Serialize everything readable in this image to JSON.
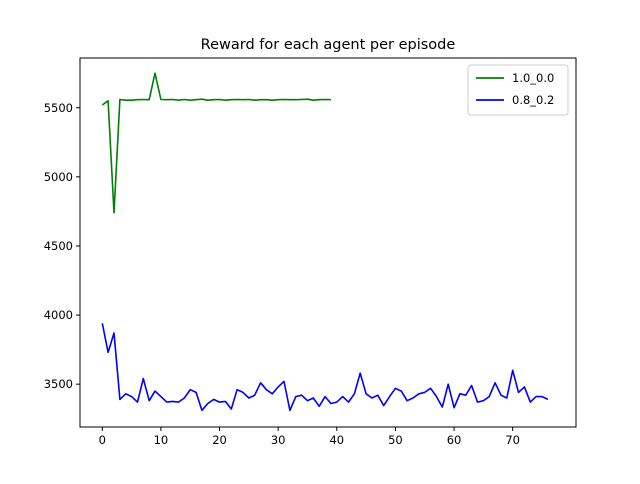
{
  "chart_data": {
    "type": "line",
    "title": "Reward for each agent per episode",
    "xlabel": "",
    "ylabel": "",
    "xlim": [
      -3.8,
      80.8
    ],
    "ylim": [
      3190,
      5860
    ],
    "xticks": [
      0,
      10,
      20,
      30,
      40,
      50,
      60,
      70
    ],
    "yticks": [
      3500,
      4000,
      4500,
      5000,
      5500
    ],
    "grid": false,
    "legend_position": "top-right",
    "series": [
      {
        "name": "1.0_0.0",
        "color": "#008000",
        "x": [
          0,
          1,
          2,
          3,
          4,
          5,
          6,
          7,
          8,
          9,
          10,
          11,
          12,
          13,
          14,
          15,
          16,
          17,
          18,
          19,
          20,
          21,
          22,
          23,
          24,
          25,
          26,
          27,
          28,
          29,
          30,
          31,
          32,
          33,
          34,
          35,
          36,
          37,
          38,
          39
        ],
        "values": [
          5520,
          5550,
          4740,
          5560,
          5555,
          5555,
          5558,
          5560,
          5558,
          5750,
          5560,
          5558,
          5560,
          5555,
          5560,
          5555,
          5558,
          5562,
          5555,
          5558,
          5560,
          5555,
          5558,
          5560,
          5558,
          5560,
          5555,
          5558,
          5558,
          5555,
          5558,
          5560,
          5558,
          5558,
          5560,
          5562,
          5555,
          5558,
          5560,
          5558
        ]
      },
      {
        "name": "0.8_0.2",
        "color": "#0000ff",
        "x": [
          0,
          1,
          2,
          3,
          4,
          5,
          6,
          7,
          8,
          9,
          10,
          11,
          12,
          13,
          14,
          15,
          16,
          17,
          18,
          19,
          20,
          21,
          22,
          23,
          24,
          25,
          26,
          27,
          28,
          29,
          30,
          31,
          32,
          33,
          34,
          35,
          36,
          37,
          38,
          39,
          40,
          41,
          42,
          43,
          44,
          45,
          46,
          47,
          48,
          49,
          50,
          51,
          52,
          53,
          54,
          55,
          56,
          57,
          58,
          59,
          60,
          61,
          62,
          63,
          64,
          65,
          66,
          67,
          68,
          69,
          70,
          71,
          72,
          73,
          74,
          75,
          76
        ],
        "values": [
          3940,
          3730,
          3870,
          3390,
          3430,
          3410,
          3370,
          3540,
          3380,
          3450,
          3410,
          3370,
          3375,
          3370,
          3400,
          3460,
          3440,
          3310,
          3360,
          3390,
          3370,
          3375,
          3320,
          3460,
          3440,
          3400,
          3420,
          3510,
          3460,
          3430,
          3480,
          3520,
          3310,
          3410,
          3420,
          3380,
          3400,
          3340,
          3410,
          3360,
          3370,
          3410,
          3370,
          3430,
          3580,
          3430,
          3400,
          3420,
          3345,
          3410,
          3470,
          3450,
          3380,
          3400,
          3430,
          3440,
          3470,
          3410,
          3335,
          3500,
          3330,
          3430,
          3420,
          3490,
          3370,
          3380,
          3410,
          3510,
          3420,
          3400,
          3600,
          3440,
          3480,
          3370,
          3410,
          3410,
          3390
        ]
      }
    ]
  }
}
